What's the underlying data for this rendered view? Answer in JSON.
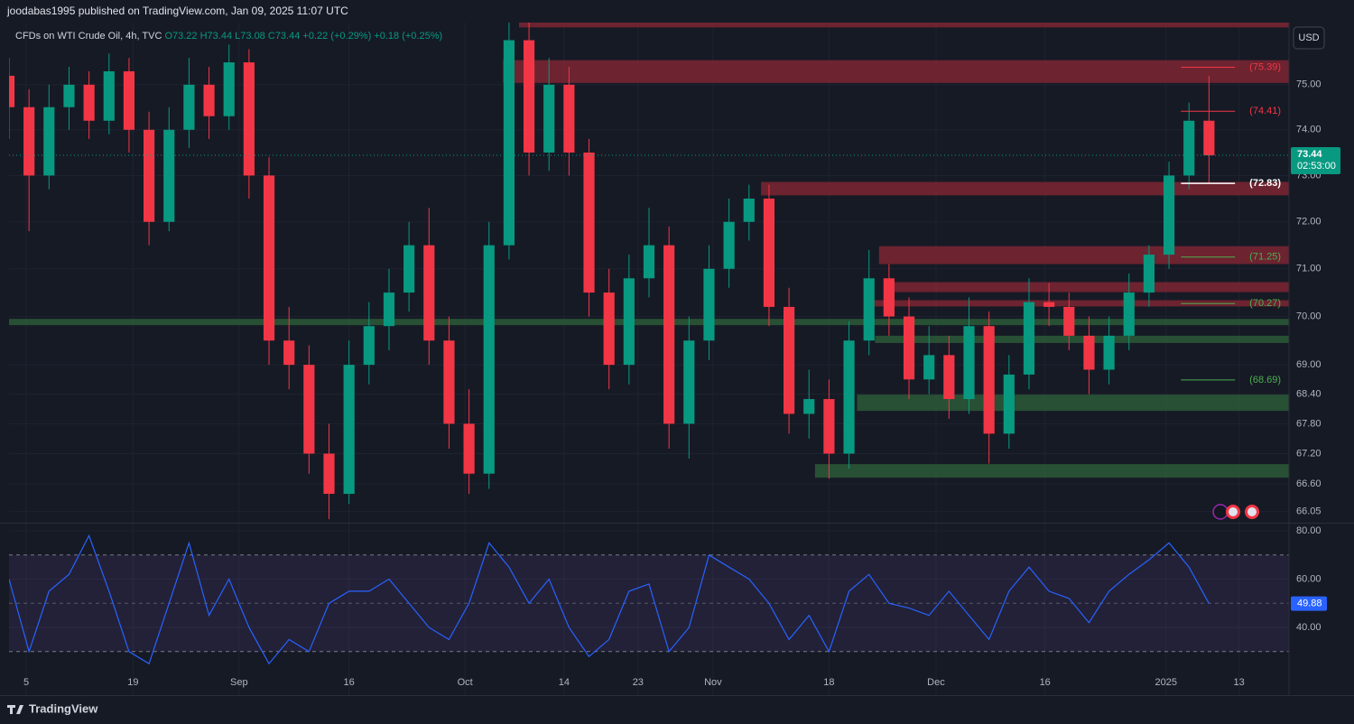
{
  "header": "joodabas1995 published on TradingView.com, Jan 09, 2025 11:07 UTC",
  "footer": "TradingView",
  "chart_data": [
    {
      "type": "candlestick",
      "symbol": "CFDs on WTI Crude Oil, 4h, TVC",
      "legend_items": [
        "O73.22",
        "H73.44",
        "L73.08",
        "C73.44",
        "+0.22 (+0.29%)",
        "+0.18 (+0.25%)"
      ],
      "currency": "USD",
      "log_scale": true,
      "grid": true,
      "up_color": "#089981",
      "down_color": "#f23645",
      "xlim": [
        0,
        64
      ],
      "xticks": [
        {
          "value": 0.86,
          "label": "5"
        },
        {
          "value": 6.2,
          "label": "19"
        },
        {
          "value": 11.5,
          "label": "Sep"
        },
        {
          "value": 17.0,
          "label": "16"
        },
        {
          "value": 22.8,
          "label": "Oct"
        },
        {
          "value": 27.75,
          "label": "14"
        },
        {
          "value": 31.45,
          "label": "23"
        },
        {
          "value": 35.2,
          "label": "Nov"
        },
        {
          "value": 41.0,
          "label": "18"
        },
        {
          "value": 46.35,
          "label": "Dec"
        },
        {
          "value": 51.8,
          "label": "16"
        },
        {
          "value": 57.85,
          "label": "2025"
        },
        {
          "value": 61.5,
          "label": "13"
        }
      ],
      "ylim": [
        65.85,
        76.4
      ],
      "yticks": [
        {
          "value": 75,
          "label": "75.00"
        },
        {
          "value": 74,
          "label": "74.00"
        },
        {
          "value": 73,
          "label": "73.00"
        },
        {
          "value": 72,
          "label": "72.00"
        },
        {
          "value": 71,
          "label": "71.00"
        },
        {
          "value": 70,
          "label": "70.00"
        },
        {
          "value": 69,
          "label": "69.00"
        },
        {
          "value": 68.4,
          "label": "68.40"
        },
        {
          "value": 67.8,
          "label": "67.80"
        },
        {
          "value": 67.2,
          "label": "67.20"
        },
        {
          "value": 66.6,
          "label": "66.60"
        },
        {
          "value": 66.05,
          "label": "66.05"
        }
      ],
      "open": [
        75.2,
        74.5,
        73.0,
        74.5,
        75.0,
        74.2,
        75.3,
        74.0,
        72.0,
        74.0,
        75.0,
        74.3,
        75.5,
        73.0,
        69.5,
        69.0,
        67.2,
        66.4,
        69.0,
        69.8,
        70.5,
        71.5,
        69.5,
        67.8,
        66.8,
        71.5,
        76.0,
        73.5,
        75.0,
        73.5,
        70.5,
        69.0,
        70.8,
        71.5,
        67.8,
        69.5,
        71.0,
        72.0,
        72.5,
        70.2,
        68.0,
        68.3,
        67.2,
        69.5,
        70.8,
        70.0,
        68.7,
        69.2,
        68.3,
        69.8,
        67.6,
        68.8,
        70.3,
        70.2,
        69.6,
        68.9,
        69.6,
        70.5,
        71.3,
        73.0,
        74.2
      ],
      "high": [
        75.6,
        74.9,
        75.0,
        75.4,
        75.3,
        75.7,
        75.6,
        74.4,
        74.5,
        75.6,
        75.4,
        75.9,
        75.8,
        73.4,
        70.2,
        69.4,
        67.8,
        69.5,
        70.3,
        71.0,
        72.0,
        72.3,
        70.0,
        68.5,
        72.0,
        76.6,
        76.4,
        75.6,
        75.4,
        73.8,
        71.0,
        71.3,
        72.3,
        71.9,
        70.0,
        71.5,
        72.5,
        72.8,
        72.8,
        70.6,
        68.9,
        68.7,
        69.9,
        71.4,
        71.1,
        70.4,
        69.8,
        69.6,
        70.4,
        70.1,
        69.2,
        70.8,
        70.7,
        70.5,
        70.0,
        70.0,
        70.9,
        71.5,
        73.3,
        74.6,
        75.2
      ],
      "low": [
        73.8,
        71.8,
        72.7,
        74.0,
        73.8,
        73.9,
        73.5,
        71.5,
        71.8,
        73.6,
        73.8,
        74.0,
        72.5,
        69.0,
        68.5,
        66.8,
        65.9,
        66.2,
        68.6,
        69.3,
        70.1,
        69.0,
        67.3,
        66.4,
        66.5,
        71.2,
        73.0,
        73.1,
        73.0,
        70.0,
        68.5,
        68.6,
        70.4,
        67.3,
        67.1,
        69.1,
        70.6,
        71.6,
        69.8,
        67.6,
        67.5,
        66.7,
        66.9,
        69.2,
        69.6,
        68.3,
        68.4,
        67.9,
        68.0,
        67.0,
        67.3,
        68.5,
        69.8,
        69.3,
        68.4,
        68.6,
        69.3,
        70.2,
        71.0,
        72.7,
        72.83
      ],
      "close": [
        74.5,
        73.0,
        74.5,
        75.0,
        74.2,
        75.3,
        74.0,
        72.0,
        74.0,
        75.0,
        74.3,
        75.5,
        73.0,
        69.5,
        69.0,
        67.2,
        66.4,
        69.0,
        69.8,
        70.5,
        71.5,
        69.5,
        67.8,
        66.8,
        71.5,
        76.0,
        73.5,
        75.0,
        73.5,
        70.5,
        69.0,
        70.8,
        71.5,
        67.8,
        69.5,
        71.0,
        72.0,
        72.5,
        70.2,
        68.0,
        68.3,
        67.2,
        69.5,
        70.8,
        70.0,
        68.7,
        69.2,
        68.3,
        69.8,
        67.6,
        68.8,
        70.3,
        70.2,
        69.6,
        68.9,
        69.6,
        70.5,
        71.3,
        73.0,
        74.2,
        73.44
      ],
      "zones": [
        {
          "low": 76.29,
          "high": 76.4,
          "start": 25.5,
          "color": "#7c2632"
        },
        {
          "low": 75.04,
          "high": 75.55,
          "start": 24.7,
          "color": "#7c2632"
        },
        {
          "low": 72.57,
          "high": 72.86,
          "start": 37.6,
          "color": "#7c2632"
        },
        {
          "low": 71.1,
          "high": 71.48,
          "start": 43.5,
          "color": "#7c2632"
        },
        {
          "low": 70.51,
          "high": 70.72,
          "start": 43.9,
          "color": "#7c2632"
        },
        {
          "low": 70.21,
          "high": 70.34,
          "start": 42.8,
          "color": "#7c2632"
        },
        {
          "low": 69.82,
          "high": 69.95,
          "start": 0,
          "color": "#2c5a37"
        },
        {
          "low": 69.45,
          "high": 69.6,
          "start": 43.3,
          "color": "#2c5a37"
        },
        {
          "low": 68.06,
          "high": 68.39,
          "start": 42.4,
          "color": "#2c5a37"
        },
        {
          "low": 66.72,
          "high": 66.99,
          "start": 40.3,
          "color": "#2c5a37"
        }
      ],
      "levels": [
        {
          "value": 75.39,
          "label": "(75.39)",
          "color": "#f23645",
          "start": 58.6,
          "end": 61.3
        },
        {
          "value": 74.41,
          "label": "(74.41)",
          "color": "#f23645",
          "start": 58.6,
          "end": 61.3
        },
        {
          "value": 72.83,
          "label": "(72.83)",
          "color": "#ffffff",
          "start": 58.6,
          "end": 61.3
        },
        {
          "value": 71.25,
          "label": "(71.25)",
          "color": "#4caf50",
          "start": 58.6,
          "end": 61.3
        },
        {
          "value": 70.27,
          "label": "(70.27)",
          "color": "#4caf50",
          "start": 58.6,
          "end": 61.3
        },
        {
          "value": 68.69,
          "label": "(68.69)",
          "color": "#4caf50",
          "start": 58.6,
          "end": 61.3
        }
      ],
      "last": {
        "value": 73.44,
        "label": "73.44",
        "timer": "02:53:00",
        "color": "#089981"
      }
    },
    {
      "type": "line",
      "color": "#2962ff",
      "xlim": [
        0,
        64
      ],
      "ylim": [
        23.2,
        83
      ],
      "yticks": [
        {
          "value": 80,
          "label": "80.00"
        },
        {
          "value": 60,
          "label": "60.00"
        },
        {
          "value": 40,
          "label": "40.00"
        }
      ],
      "bands": [
        70,
        30
      ],
      "mid": 50,
      "values": [
        60,
        30,
        55,
        62,
        78,
        55,
        30,
        25,
        50,
        75,
        45,
        60,
        40,
        25,
        35,
        30,
        50,
        55,
        55,
        60,
        50,
        40,
        35,
        50,
        75,
        65,
        50,
        60,
        40,
        28,
        35,
        55,
        58,
        30,
        40,
        70,
        65,
        60,
        50,
        35,
        45,
        30,
        55,
        62,
        50,
        48,
        45,
        55,
        45,
        35,
        55,
        65,
        55,
        52,
        42,
        55,
        62,
        68,
        75,
        65,
        49.88
      ],
      "value_labels": {
        "60": "49.88"
      }
    }
  ]
}
